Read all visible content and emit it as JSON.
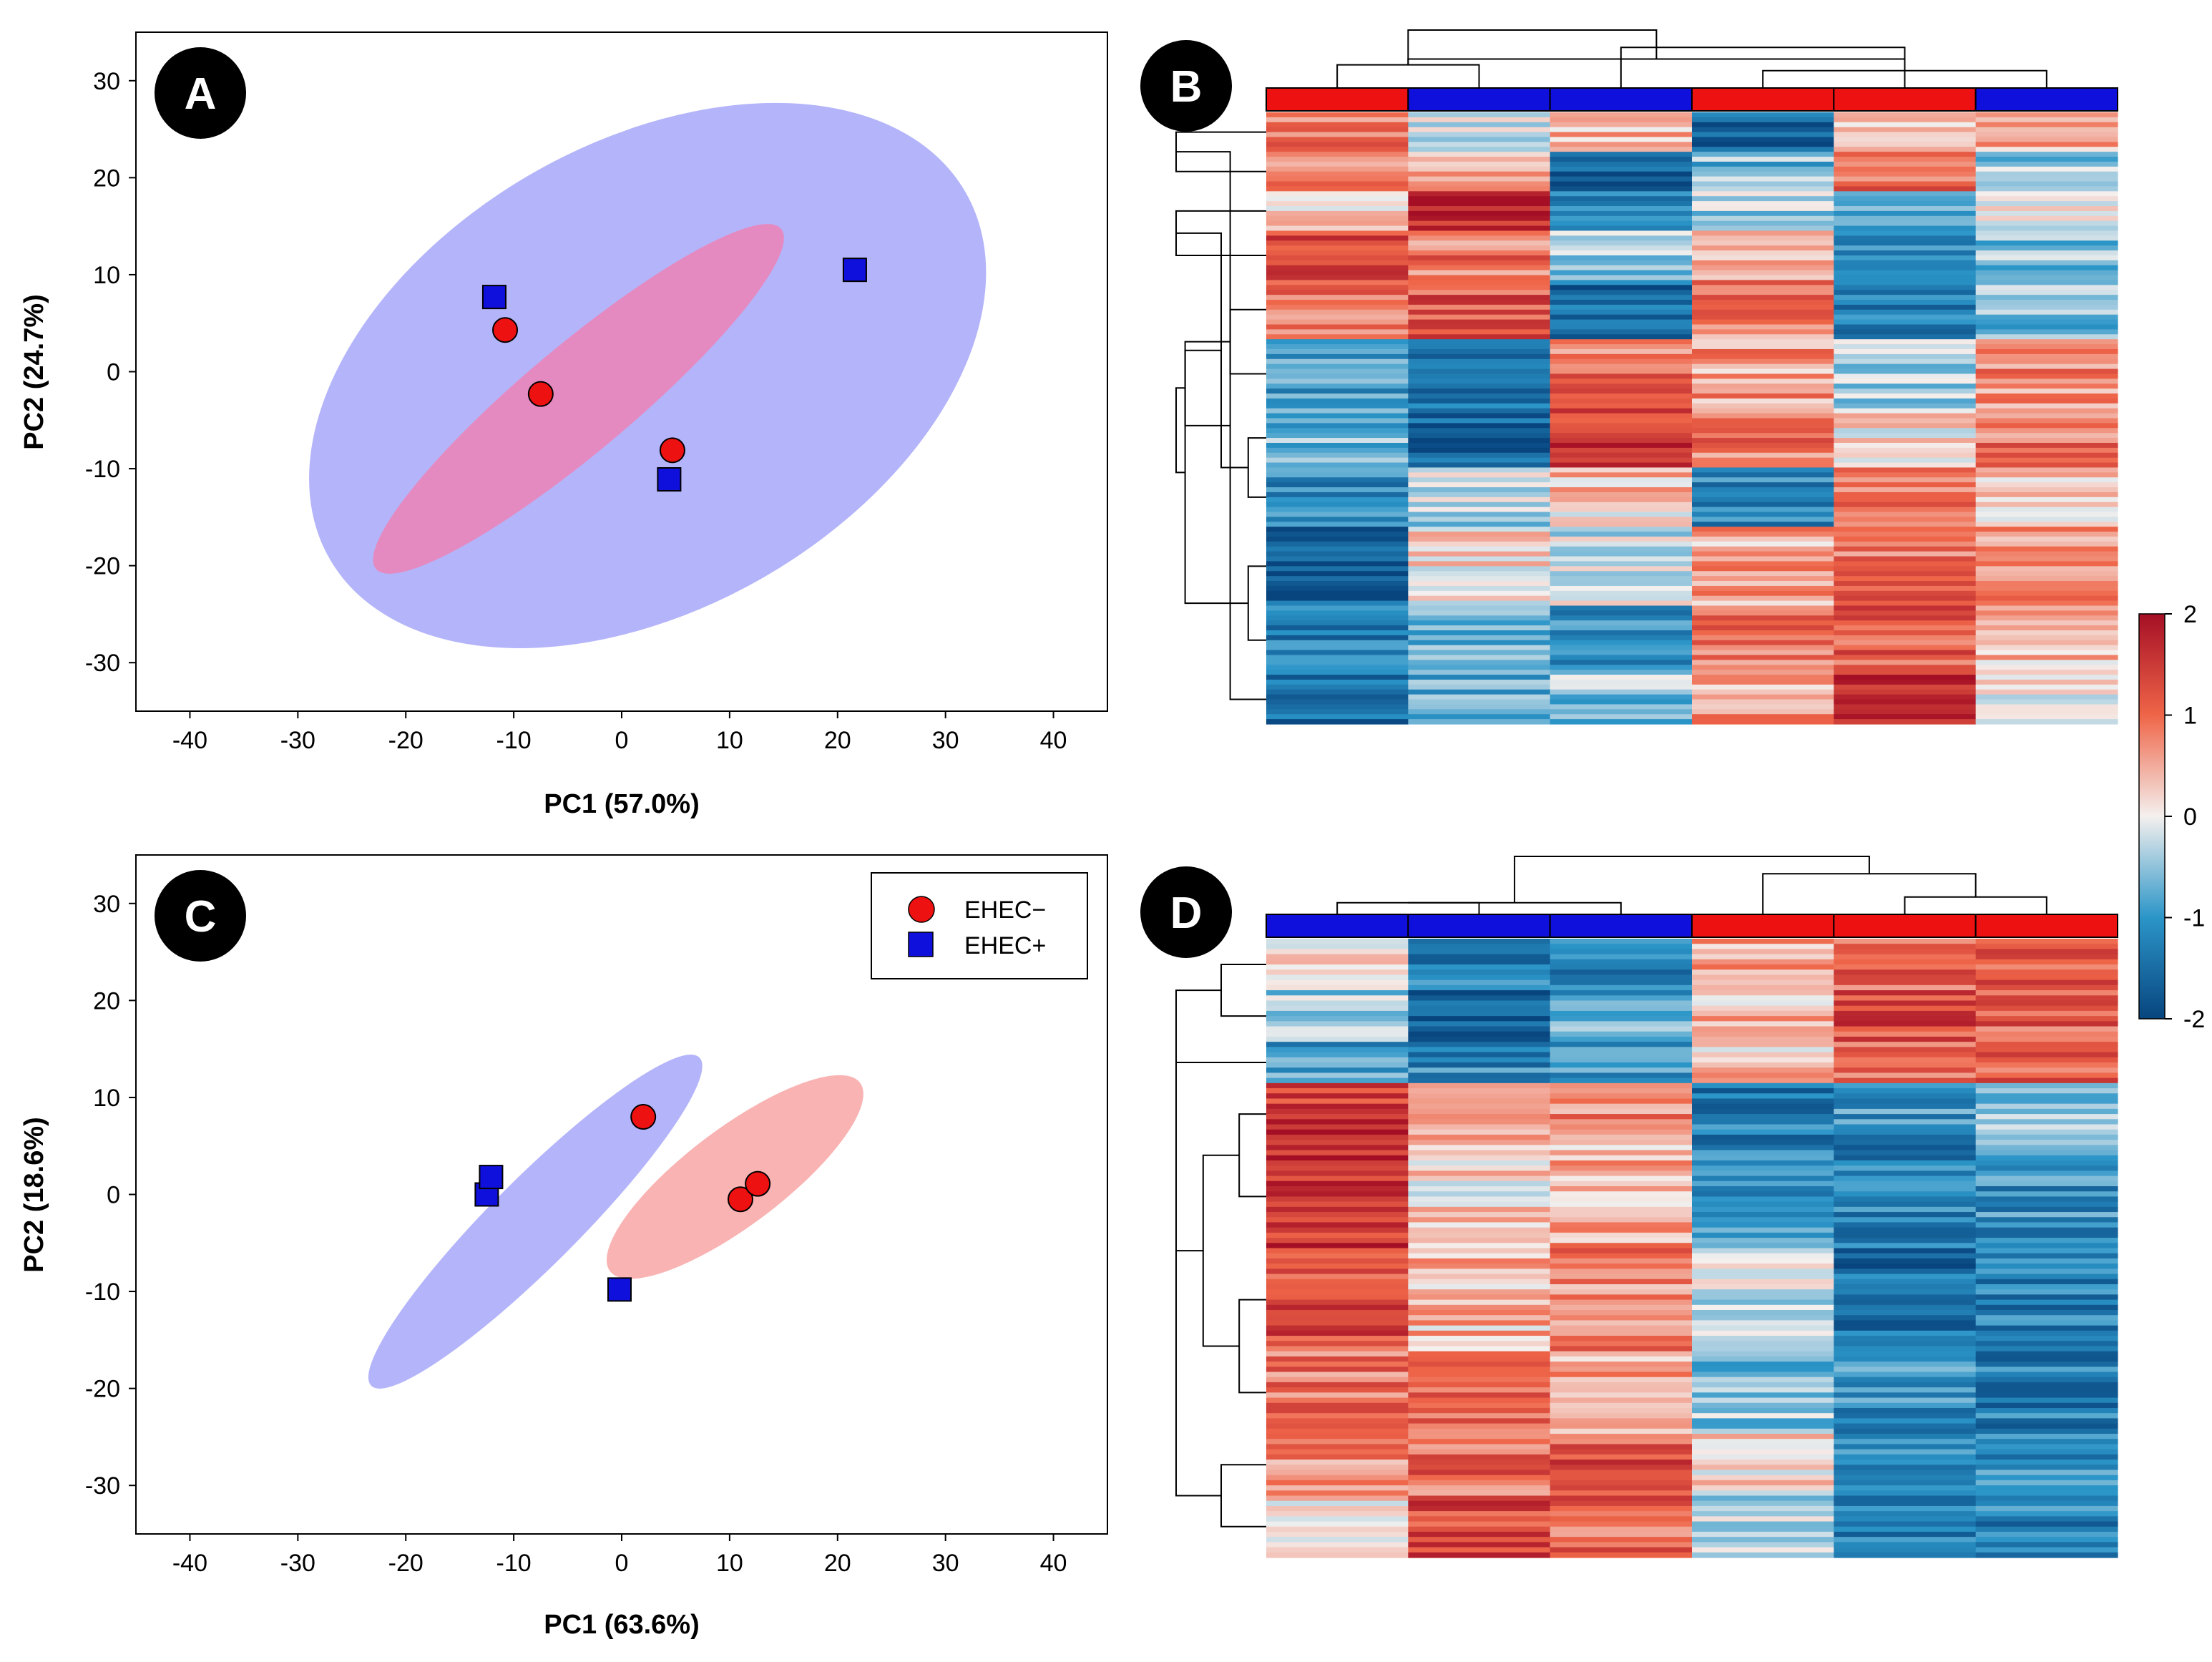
{
  "panels": {
    "A": "A",
    "B": "B",
    "C": "C",
    "D": "D"
  },
  "colors": {
    "ehec_minus": "#ee1111",
    "ehec_plus": "#1010dd",
    "ellipse_minus_on_blue": "#e58ac0",
    "ellipse_minus": "#f9b3b3",
    "ellipse_plus": "#b4b4fa",
    "heat_high": "#a50f25",
    "heat_mid": "#f4f0ee",
    "heat_low": "#08457f"
  },
  "legend": {
    "items": [
      {
        "label": "EHEC−",
        "marker": "circle",
        "color": "#ee1111"
      },
      {
        "label": "EHEC+",
        "marker": "square",
        "color": "#1010dd"
      }
    ]
  },
  "colorbar": {
    "ticks": [
      {
        "value": 2,
        "label": "2"
      },
      {
        "value": 1,
        "label": "1"
      },
      {
        "value": 0,
        "label": "0"
      },
      {
        "value": -1,
        "label": "-1"
      },
      {
        "value": -2,
        "label": "-2"
      }
    ],
    "range": [
      -2,
      2
    ]
  },
  "chart_data": [
    {
      "id": "A",
      "type": "scatter",
      "title": "",
      "xlabel": "PC1 (57.0%)",
      "ylabel": "PC2 (24.7%)",
      "xlim": [
        -45,
        45
      ],
      "ylim": [
        -35,
        35
      ],
      "xticks": [
        -40,
        -30,
        -20,
        -10,
        0,
        10,
        20,
        30,
        40
      ],
      "yticks": [
        -30,
        -20,
        -10,
        0,
        10,
        20,
        30
      ],
      "series": [
        {
          "name": "EHEC−",
          "marker": "circle",
          "points": [
            [
              -10.8,
              4.3
            ],
            [
              -7.5,
              -2.3
            ],
            [
              4.7,
              -8.1
            ]
          ]
        },
        {
          "name": "EHEC+",
          "marker": "square",
          "points": [
            [
              -11.8,
              7.7
            ],
            [
              4.4,
              -11.1
            ],
            [
              21.6,
              10.5
            ]
          ]
        }
      ],
      "ellipses": [
        {
          "group": "EHEC+",
          "cx": 2.4,
          "cy": -0.4,
          "rx": 34,
          "ry": 24,
          "angle_deg": 30
        },
        {
          "group": "EHEC−",
          "cx": -4,
          "cy": -2.8,
          "rx": 24.5,
          "ry": 5.5,
          "angle_deg": 40
        }
      ]
    },
    {
      "id": "C",
      "type": "scatter",
      "title": "",
      "xlabel": "PC1 (63.6%)",
      "ylabel": "PC2 (18.6%)",
      "xlim": [
        -45,
        45
      ],
      "ylim": [
        -35,
        35
      ],
      "xticks": [
        -40,
        -30,
        -20,
        -10,
        0,
        10,
        20,
        30,
        40
      ],
      "yticks": [
        -30,
        -20,
        -10,
        0,
        10,
        20,
        30
      ],
      "series": [
        {
          "name": "EHEC−",
          "marker": "circle",
          "points": [
            [
              2,
              8
            ],
            [
              11,
              -0.5
            ],
            [
              12.6,
              1.1
            ]
          ]
        },
        {
          "name": "EHEC+",
          "marker": "square",
          "points": [
            [
              -12.5,
              0
            ],
            [
              -12.1,
              1.8
            ],
            [
              -0.2,
              -9.8
            ]
          ]
        }
      ],
      "ellipses": [
        {
          "group": "EHEC+",
          "cx": -8,
          "cy": -2.8,
          "rx": 21.5,
          "ry": 4.5,
          "angle_deg": 45
        },
        {
          "group": "EHEC−",
          "cx": 10.5,
          "cy": 1.8,
          "rx": 14.5,
          "ry": 5,
          "angle_deg": 37
        }
      ]
    },
    {
      "id": "B",
      "type": "heatmap",
      "title": "",
      "columns": [
        {
          "group": "EHEC−"
        },
        {
          "group": "EHEC+"
        },
        {
          "group": "EHEC+"
        },
        {
          "group": "EHEC−"
        },
        {
          "group": "EHEC−"
        },
        {
          "group": "EHEC+"
        }
      ],
      "row_blocks": [
        {
          "rows": 8,
          "values": [
            0.8,
            -0.2,
            0.4,
            -1.7,
            0.3,
            0.5
          ]
        },
        {
          "rows": 8,
          "values": [
            0.7,
            0.6,
            -1.6,
            -0.6,
            0.9,
            -0.4
          ]
        },
        {
          "rows": 8,
          "values": [
            0.4,
            1.7,
            -1.1,
            -0.3,
            -0.8,
            -0.2
          ]
        },
        {
          "rows": 10,
          "values": [
            1.4,
            0.9,
            -0.5,
            0.4,
            -1.0,
            -0.6
          ]
        },
        {
          "rows": 12,
          "values": [
            0.8,
            1.2,
            -1.5,
            0.8,
            -1.2,
            -0.6
          ]
        },
        {
          "rows": 14,
          "values": [
            -1.0,
            -1.4,
            0.9,
            0.6,
            -0.3,
            0.7
          ]
        },
        {
          "rows": 12,
          "values": [
            -0.6,
            -1.6,
            1.5,
            0.9,
            0.2,
            0.9
          ]
        },
        {
          "rows": 12,
          "values": [
            -1.2,
            -0.3,
            0.3,
            -1.1,
            0.8,
            0.4
          ]
        },
        {
          "rows": 16,
          "values": [
            -1.7,
            0.2,
            -0.2,
            0.5,
            0.9,
            0.6
          ]
        },
        {
          "rows": 14,
          "values": [
            -1.3,
            -0.6,
            -1.2,
            0.9,
            1.1,
            0.3
          ]
        },
        {
          "rows": 10,
          "values": [
            -1.5,
            -0.7,
            -0.5,
            0.6,
            1.9,
            0.0
          ]
        }
      ],
      "col_dendrogram": [
        [
          0,
          1,
          0.4
        ],
        [
          3,
          5,
          0.3
        ],
        [
          4,
          6,
          0.5
        ],
        [
          2,
          7,
          0.7
        ],
        [
          6,
          8,
          1.0
        ]
      ],
      "row_dendrogram": [
        [
          0,
          1,
          1.0
        ],
        [
          2,
          3,
          1.0
        ],
        [
          6,
          7,
          0.2
        ],
        [
          8,
          9,
          0.2
        ],
        [
          4,
          5,
          0.4
        ],
        [
          10,
          11,
          0.4
        ],
        [
          12,
          13,
          0.5
        ],
        [
          14,
          15,
          0.9
        ],
        [
          16,
          17,
          0.9
        ],
        [
          18,
          19,
          1.0
        ]
      ]
    },
    {
      "id": "D",
      "type": "heatmap",
      "title": "",
      "columns": [
        {
          "group": "EHEC+"
        },
        {
          "group": "EHEC+"
        },
        {
          "group": "EHEC+"
        },
        {
          "group": "EHEC−"
        },
        {
          "group": "EHEC−"
        },
        {
          "group": "EHEC−"
        }
      ],
      "row_blocks": [
        {
          "rows": 10,
          "values": [
            0.1,
            -1.3,
            -1.2,
            0.6,
            1.1,
            1.2
          ]
        },
        {
          "rows": 10,
          "values": [
            -0.4,
            -1.7,
            -0.8,
            0.4,
            1.3,
            1.1
          ]
        },
        {
          "rows": 8,
          "values": [
            -0.9,
            -1.2,
            -1.0,
            0.3,
            1.0,
            1.0
          ]
        },
        {
          "rows": 12,
          "values": [
            1.5,
            0.5,
            0.7,
            -1.3,
            -1.0,
            -0.5
          ]
        },
        {
          "rows": 20,
          "values": [
            1.6,
            0.2,
            0.5,
            -1.0,
            -1.3,
            -1.1
          ]
        },
        {
          "rows": 20,
          "values": [
            1.3,
            0.4,
            0.8,
            -0.3,
            -1.5,
            -1.3
          ]
        },
        {
          "rows": 16,
          "values": [
            0.9,
            1.2,
            0.6,
            -0.5,
            -1.1,
            -1.3
          ]
        },
        {
          "rows": 12,
          "values": [
            0.7,
            1.0,
            1.2,
            0.1,
            -1.2,
            -1.1
          ]
        },
        {
          "rows": 12,
          "values": [
            0.3,
            1.4,
            1.0,
            -0.3,
            -1.3,
            -1.2
          ]
        }
      ],
      "col_dendrogram": [
        [
          0,
          1,
          0.2
        ],
        [
          2,
          6,
          0.2
        ],
        [
          4,
          5,
          0.3
        ],
        [
          3,
          8,
          0.7
        ],
        [
          7,
          9,
          1.0
        ]
      ],
      "row_dendrogram": [
        [
          0,
          1,
          0.5
        ],
        [
          2,
          9,
          1.0
        ],
        [
          3,
          4,
          0.3
        ],
        [
          5,
          6,
          0.3
        ],
        [
          7,
          8,
          0.5
        ],
        [
          11,
          12,
          0.7
        ],
        [
          13,
          14,
          1.0
        ],
        [
          10,
          15,
          1.0
        ]
      ]
    }
  ]
}
